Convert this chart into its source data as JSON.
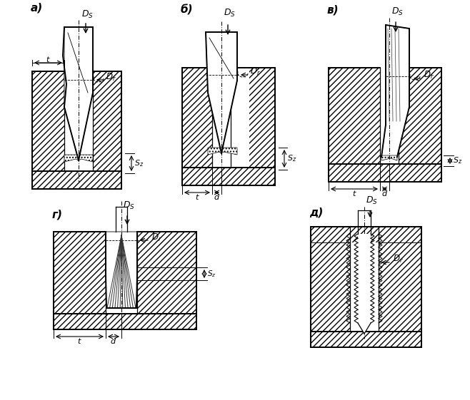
{
  "background_color": "#ffffff",
  "line_color": "#000000",
  "labels": {
    "a": "а)",
    "b": "б)",
    "c": "в)",
    "d": "г)",
    "e": "д)"
  },
  "fig_width": 6.58,
  "fig_height": 5.61,
  "dpi": 100
}
